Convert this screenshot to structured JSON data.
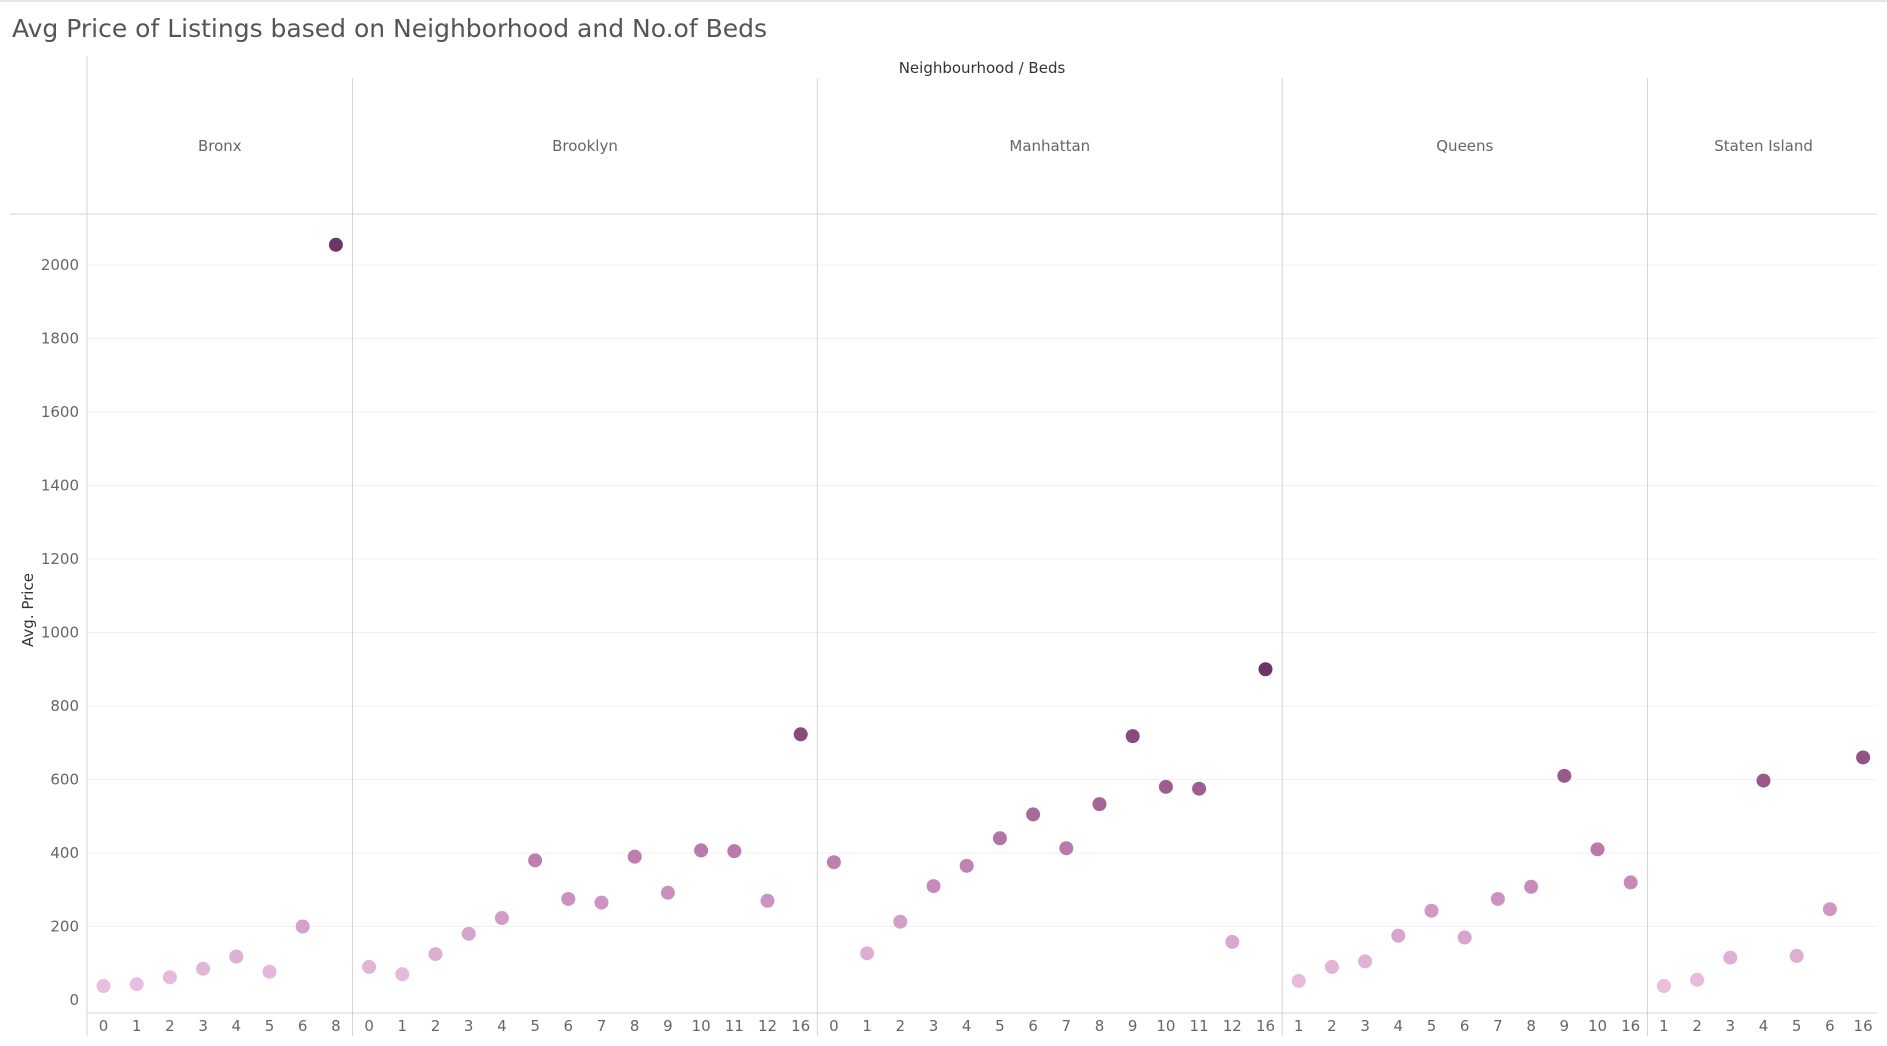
{
  "chart_data": {
    "type": "scatter",
    "title": "Avg Price of Listings based on Neighborhood and No.of Beds",
    "column_header": "Neighbourhood / Beds",
    "ylabel": "Avg. Price",
    "ylim": [
      0,
      2100
    ],
    "yticks": [
      0,
      200,
      400,
      600,
      800,
      1000,
      1200,
      1400,
      1600,
      1800,
      2000
    ],
    "grid": true,
    "color_scale": [
      "#ecc6e3",
      "#c98dbc",
      "#9a5a8c",
      "#6b3565"
    ],
    "panels": [
      {
        "name": "Bronx",
        "beds": [
          "0",
          "1",
          "2",
          "3",
          "4",
          "5",
          "6",
          "8"
        ],
        "values": [
          38,
          43,
          62,
          85,
          118,
          77,
          200,
          2055
        ]
      },
      {
        "name": "Brooklyn",
        "beds": [
          "0",
          "1",
          "2",
          "3",
          "4",
          "5",
          "6",
          "7",
          "8",
          "9",
          "10",
          "11",
          "12",
          "16"
        ],
        "values": [
          90,
          70,
          125,
          180,
          223,
          380,
          275,
          265,
          390,
          292,
          407,
          405,
          270,
          723
        ]
      },
      {
        "name": "Manhattan",
        "beds": [
          "0",
          "1",
          "2",
          "3",
          "4",
          "5",
          "6",
          "7",
          "8",
          "9",
          "10",
          "11",
          "12",
          "16"
        ],
        "values": [
          375,
          127,
          213,
          310,
          365,
          440,
          505,
          413,
          533,
          718,
          580,
          575,
          158,
          900
        ]
      },
      {
        "name": "Queens",
        "beds": [
          "1",
          "2",
          "3",
          "4",
          "5",
          "6",
          "7",
          "8",
          "9",
          "10",
          "16"
        ],
        "values": [
          52,
          90,
          105,
          175,
          243,
          170,
          275,
          308,
          610,
          410,
          320
        ]
      },
      {
        "name": "Staten Island",
        "beds": [
          "1",
          "2",
          "3",
          "4",
          "5",
          "6",
          "16"
        ],
        "values": [
          38,
          55,
          115,
          597,
          120,
          247,
          660
        ]
      }
    ]
  }
}
